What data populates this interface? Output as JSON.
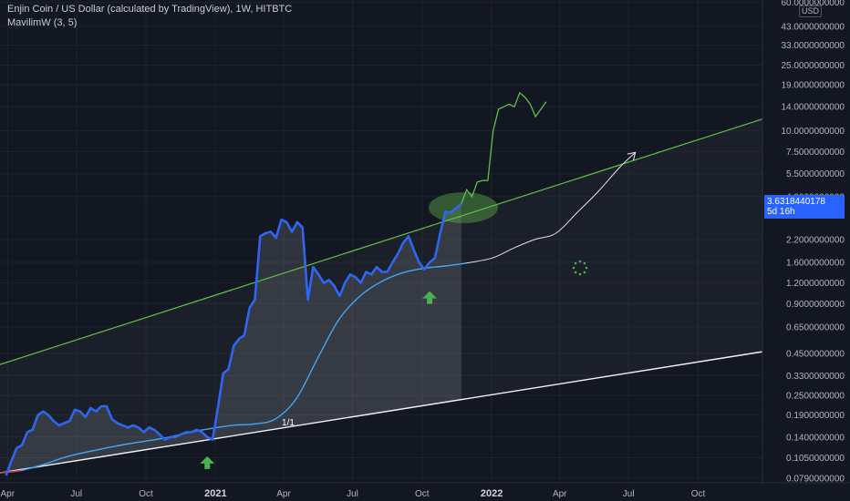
{
  "header": {
    "title": "Enjin Coin / US Dollar (calculated by TradingView), 1W, HITBTC",
    "indicator": "MavilimW (3, 5)"
  },
  "axis": {
    "currency": "USD",
    "y_tick_labels": [
      "60.0000000000",
      "43.0000000000",
      "33.0000000000",
      "25.0000000000",
      "19.0000000000",
      "14.0000000000",
      "10.0000000000",
      "7.5000000000",
      "5.5000000000",
      "4.0000000000",
      "2.2000000000",
      "1.6000000000",
      "1.2000000000",
      "0.9000000000",
      "0.6500000000",
      "0.4500000000",
      "0.3300000000",
      "0.2500000000",
      "0.1900000000",
      "0.1400000000",
      "0.1050000000",
      "0.0790000000"
    ],
    "x_tick_labels": [
      "Apr",
      "Jul",
      "Oct",
      "2021",
      "Apr",
      "Jul",
      "Oct",
      "2022",
      "Apr",
      "Jul",
      "Oct"
    ]
  },
  "price_tag": {
    "price": "3.6318440178",
    "countdown": "5d 16h"
  },
  "annotation_label": "1/1",
  "colors": {
    "price": "#2f66f0",
    "projection": "#5fbf4e",
    "mavilim": "#42a5f5",
    "mavilim_projection": "#e0e3eb",
    "upper_channel": "#5fbf4e",
    "lower_channel": "#f0f3fa",
    "buy_arrow": "#4caf50",
    "price_tag": "#2962ff"
  },
  "chart_data": {
    "type": "line",
    "scale": "log",
    "ylim": [
      0.074,
      62
    ],
    "xlim": [
      "2020-03-22",
      "2022-12-25"
    ],
    "title": "Enjin Coin / US Dollar (calculated by TradingView), 1W, HITBTC",
    "series": [
      {
        "name": "Enjin Coin / US Dollar",
        "x": [
          "2020-03-30",
          "2020-04-06",
          "2020-04-13",
          "2020-04-20",
          "2020-04-27",
          "2020-05-04",
          "2020-05-11",
          "2020-05-18",
          "2020-05-25",
          "2020-06-01",
          "2020-06-08",
          "2020-06-15",
          "2020-06-22",
          "2020-06-29",
          "2020-07-06",
          "2020-07-13",
          "2020-07-20",
          "2020-07-27",
          "2020-08-03",
          "2020-08-10",
          "2020-08-17",
          "2020-08-24",
          "2020-08-31",
          "2020-09-07",
          "2020-09-14",
          "2020-09-21",
          "2020-09-28",
          "2020-10-05",
          "2020-10-12",
          "2020-10-19",
          "2020-10-26",
          "2020-11-02",
          "2020-11-09",
          "2020-11-16",
          "2020-11-23",
          "2020-11-30",
          "2020-12-07",
          "2020-12-14",
          "2020-12-21",
          "2020-12-28",
          "2021-01-04",
          "2021-01-11",
          "2021-01-18",
          "2021-01-25",
          "2021-02-01",
          "2021-02-08",
          "2021-02-15",
          "2021-02-22",
          "2021-03-01",
          "2021-03-08",
          "2021-03-15",
          "2021-03-22",
          "2021-03-29",
          "2021-04-05",
          "2021-04-12",
          "2021-04-19",
          "2021-04-26",
          "2021-05-03",
          "2021-05-10",
          "2021-05-17",
          "2021-05-24",
          "2021-05-31",
          "2021-06-07",
          "2021-06-14",
          "2021-06-21",
          "2021-06-28",
          "2021-07-05",
          "2021-07-12",
          "2021-07-19",
          "2021-07-26",
          "2021-08-02",
          "2021-08-09",
          "2021-08-16",
          "2021-08-23",
          "2021-08-30",
          "2021-09-06",
          "2021-09-13",
          "2021-09-20",
          "2021-09-27",
          "2021-10-04",
          "2021-10-11",
          "2021-10-18",
          "2021-10-25",
          "2021-11-01",
          "2021-11-08",
          "2021-11-15",
          "2021-11-22"
        ],
        "y": [
          0.082,
          0.1,
          0.12,
          0.125,
          0.15,
          0.155,
          0.19,
          0.2,
          0.19,
          0.175,
          0.165,
          0.17,
          0.175,
          0.205,
          0.2,
          0.185,
          0.21,
          0.2,
          0.215,
          0.215,
          0.18,
          0.17,
          0.165,
          0.16,
          0.165,
          0.16,
          0.15,
          0.16,
          0.155,
          0.145,
          0.135,
          0.14,
          0.14,
          0.145,
          0.15,
          0.15,
          0.155,
          0.15,
          0.14,
          0.135,
          0.21,
          0.34,
          0.36,
          0.5,
          0.55,
          0.58,
          0.85,
          0.95,
          2.3,
          2.4,
          2.45,
          2.25,
          2.9,
          2.8,
          2.45,
          2.8,
          2.6,
          0.95,
          1.5,
          1.35,
          1.2,
          1.25,
          1.15,
          1.0,
          1.2,
          1.35,
          1.3,
          1.2,
          1.4,
          1.35,
          1.5,
          1.4,
          1.4,
          1.6,
          1.8,
          2.1,
          2.3,
          1.9,
          1.6,
          1.45,
          1.6,
          1.7,
          2.4,
          3.25,
          3.2,
          3.4,
          3.63
        ]
      },
      {
        "name": "projection",
        "x": [
          "2021-11-29",
          "2021-12-06",
          "2021-12-13",
          "2021-12-20",
          "2021-12-27",
          "2022-01-03",
          "2022-01-10",
          "2022-01-17",
          "2022-01-24",
          "2022-01-31",
          "2022-02-07",
          "2022-02-14",
          "2022-02-21",
          "2022-02-28",
          "2022-03-07",
          "2022-03-14"
        ],
        "y": [
          4.4,
          4.0,
          4.9,
          5.0,
          5.0,
          10.0,
          13.5,
          14.0,
          14.5,
          14.0,
          17.0,
          16.0,
          14.5,
          12.2,
          13.5,
          15.0
        ]
      },
      {
        "name": "MavilimW (3, 5)",
        "x": [
          "2020-03-22",
          "2020-04-19",
          "2020-05-17",
          "2020-06-14",
          "2020-07-12",
          "2020-08-09",
          "2020-09-06",
          "2020-10-04",
          "2020-11-01",
          "2020-11-29",
          "2020-12-27",
          "2021-01-24",
          "2021-02-21",
          "2021-03-21",
          "2021-04-18",
          "2021-05-16",
          "2021-06-13",
          "2021-07-11",
          "2021-08-08",
          "2021-09-05",
          "2021-10-03",
          "2021-10-31",
          "2021-11-28"
        ],
        "y": [
          0.085,
          0.088,
          0.095,
          0.105,
          0.113,
          0.12,
          0.127,
          0.133,
          0.14,
          0.15,
          0.158,
          0.165,
          0.168,
          0.18,
          0.24,
          0.42,
          0.72,
          1.0,
          1.22,
          1.38,
          1.47,
          1.52,
          1.58
        ]
      },
      {
        "name": "MavilimW projection",
        "x": [
          "2021-11-28",
          "2022-01-02",
          "2022-01-30",
          "2022-02-27",
          "2022-03-27",
          "2022-04-24",
          "2022-05-22",
          "2022-06-19",
          "2022-07-10"
        ],
        "y": [
          1.58,
          1.7,
          1.95,
          2.2,
          2.4,
          3.2,
          4.3,
          6.0,
          7.4
        ]
      },
      {
        "name": "upper channel",
        "x": [
          "2020-03-22",
          "2022-12-25"
        ],
        "y": [
          0.385,
          11.8
        ]
      },
      {
        "name": "lower channel",
        "x": [
          "2020-03-22",
          "2022-12-25"
        ],
        "y": [
          0.085,
          0.46
        ]
      }
    ]
  }
}
